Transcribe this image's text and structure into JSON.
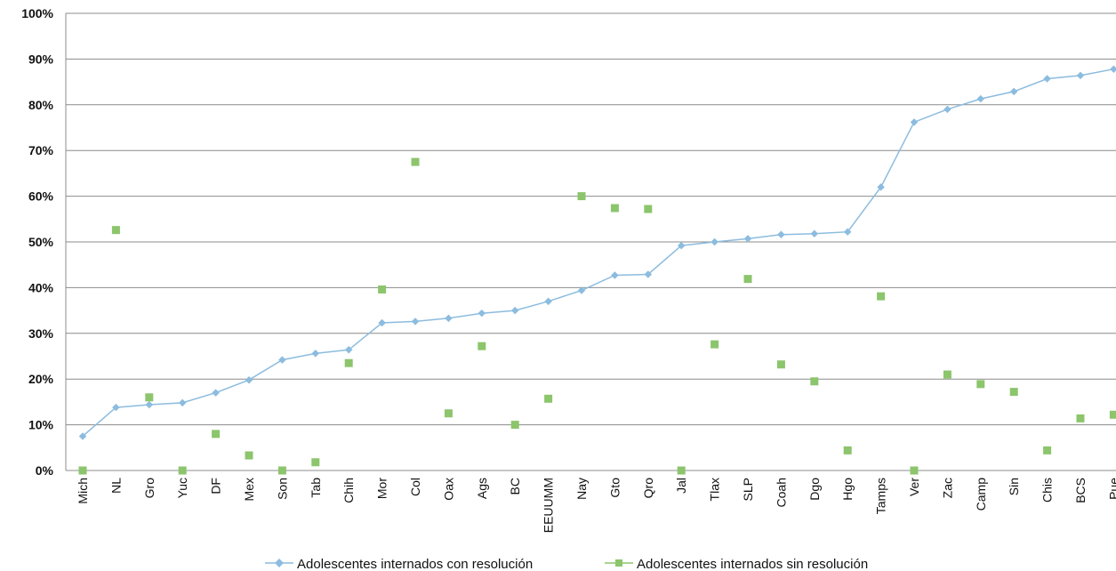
{
  "chart_data": {
    "type": "line",
    "title": "",
    "xlabel": "",
    "ylabel": "",
    "ylim": [
      0,
      100
    ],
    "yticks": [
      "0%",
      "10%",
      "20%",
      "30%",
      "40%",
      "50%",
      "60%",
      "70%",
      "80%",
      "90%",
      "100%"
    ],
    "grid": true,
    "legend_position": "bottom",
    "categories": [
      "Mich",
      "NL",
      "Gro",
      "Yuc",
      "DF",
      "Mex",
      "Son",
      "Tab",
      "Chih",
      "Mor",
      "Col",
      "Oax",
      "Ags",
      "BC",
      "EEUUMM",
      "Nay",
      "Gto",
      "Qro",
      "Jal",
      "Tlax",
      "SLP",
      "Coah",
      "Dgo",
      "Hgo",
      "Tamps",
      "Ver",
      "Zac",
      "Camp",
      "Sin",
      "Chis",
      "BCS",
      "Pue"
    ],
    "series": [
      {
        "name": "Adolescentes internados con resolución",
        "style": "line-diamond",
        "color": "#8cbcdf",
        "values": [
          7.5,
          13.8,
          14.4,
          14.8,
          17.0,
          19.8,
          24.2,
          25.6,
          26.4,
          32.3,
          32.6,
          33.3,
          34.4,
          35.0,
          37.0,
          39.4,
          42.7,
          42.9,
          49.2,
          50.0,
          50.7,
          51.6,
          51.8,
          52.2,
          62.0,
          76.2,
          79.0,
          81.3,
          82.9,
          85.7,
          86.4,
          87.8
        ]
      },
      {
        "name": "Adolescentes internados sin resolución",
        "style": "markers-square",
        "color": "#8cc56c",
        "values": [
          0,
          52.6,
          16.0,
          0,
          8.0,
          3.3,
          0,
          1.8,
          23.5,
          39.6,
          67.5,
          12.5,
          27.2,
          10.0,
          15.7,
          60.0,
          57.4,
          57.2,
          0,
          27.6,
          41.9,
          23.2,
          19.5,
          4.4,
          38.1,
          0,
          21.0,
          18.9,
          17.2,
          4.4,
          11.4,
          12.2
        ]
      }
    ]
  }
}
